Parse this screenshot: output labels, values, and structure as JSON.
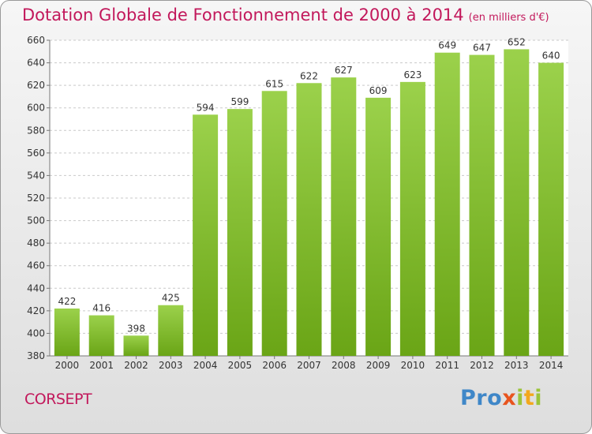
{
  "chart_data": {
    "type": "bar",
    "title": "Dotation Globale de Fonctionnement de 2000 à 2014",
    "unit": "(en milliers d'€)",
    "categories": [
      "2000",
      "2001",
      "2002",
      "2003",
      "2004",
      "2005",
      "2006",
      "2007",
      "2008",
      "2009",
      "2010",
      "2011",
      "2012",
      "2013",
      "2014"
    ],
    "values": [
      422,
      416,
      398,
      425,
      594,
      599,
      615,
      622,
      627,
      609,
      623,
      649,
      647,
      652,
      640
    ],
    "ylim": [
      380,
      660
    ],
    "yticks": [
      380,
      400,
      420,
      440,
      460,
      480,
      500,
      520,
      540,
      560,
      580,
      600,
      620,
      640,
      660
    ],
    "grid": true,
    "bar_color_top": "#9bd14b",
    "bar_color_bottom": "#6aa516",
    "grid_color": "#c9c9c9"
  },
  "commune": "CORSEPT",
  "logo": {
    "letters": [
      "P",
      "r",
      "o",
      "x",
      "i",
      "t",
      "i"
    ],
    "colors": [
      "#3f87c8",
      "#3f87c8",
      "#3f87c8",
      "#e8541e",
      "#9bc43a",
      "#f2a81d",
      "#9bc43a"
    ]
  },
  "theme": {
    "accent": "#c2185b"
  }
}
